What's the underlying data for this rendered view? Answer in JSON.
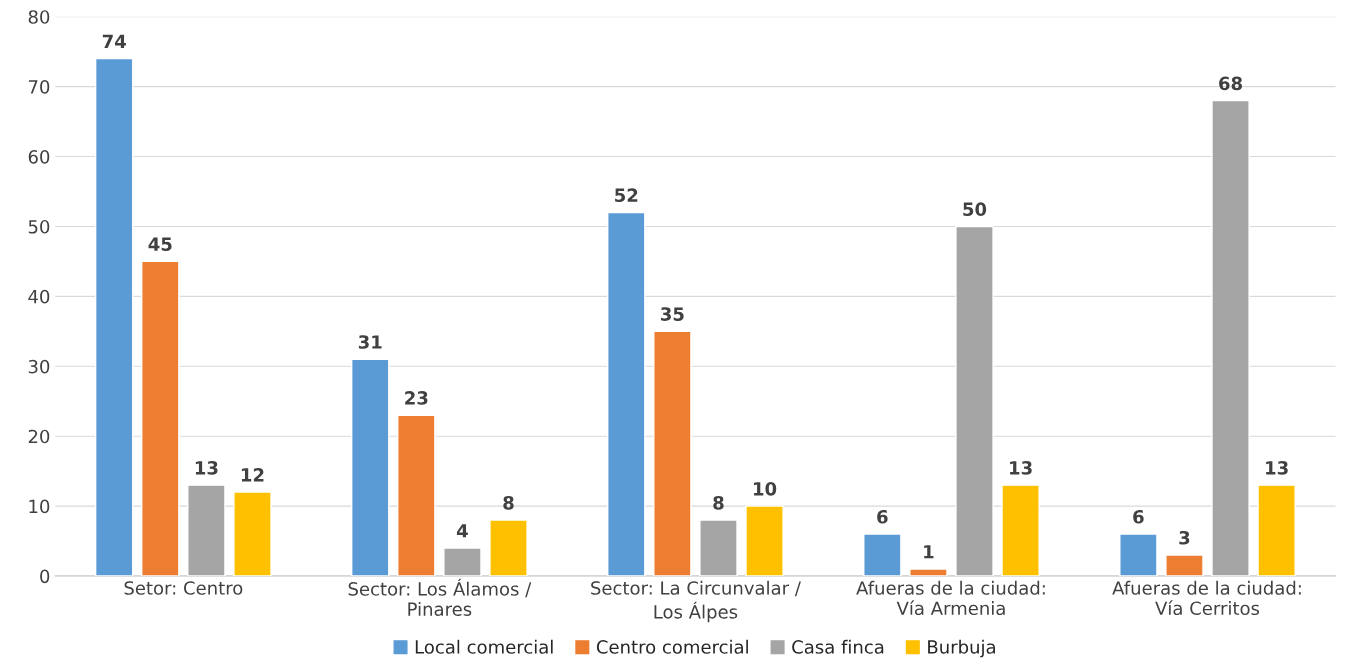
{
  "chart_data": {
    "type": "bar",
    "categories": [
      "Setor: Centro",
      "Sector: Los Álamos /\nPinares",
      "Sector: La Circunvalar /\nLos Álpes",
      "Afueras de la ciudad:\nVía Armenia",
      "Afueras de la ciudad:\nVía Cerritos"
    ],
    "series": [
      {
        "name": "Local comercial",
        "color": "#5b9bd5",
        "values": [
          74,
          31,
          52,
          6,
          6
        ]
      },
      {
        "name": "Centro comercial",
        "color": "#ed7d31",
        "values": [
          45,
          23,
          35,
          1,
          3
        ]
      },
      {
        "name": "Casa finca",
        "color": "#a5a5a5",
        "values": [
          13,
          4,
          8,
          50,
          68
        ]
      },
      {
        "name": "Burbuja",
        "color": "#ffc000",
        "values": [
          12,
          8,
          10,
          13,
          13
        ]
      }
    ],
    "ylim": [
      0,
      80
    ],
    "yticks": [
      0,
      10,
      20,
      30,
      40,
      50,
      60,
      70,
      80
    ],
    "grid": "y",
    "legend": "bottom",
    "data_labels": true
  }
}
